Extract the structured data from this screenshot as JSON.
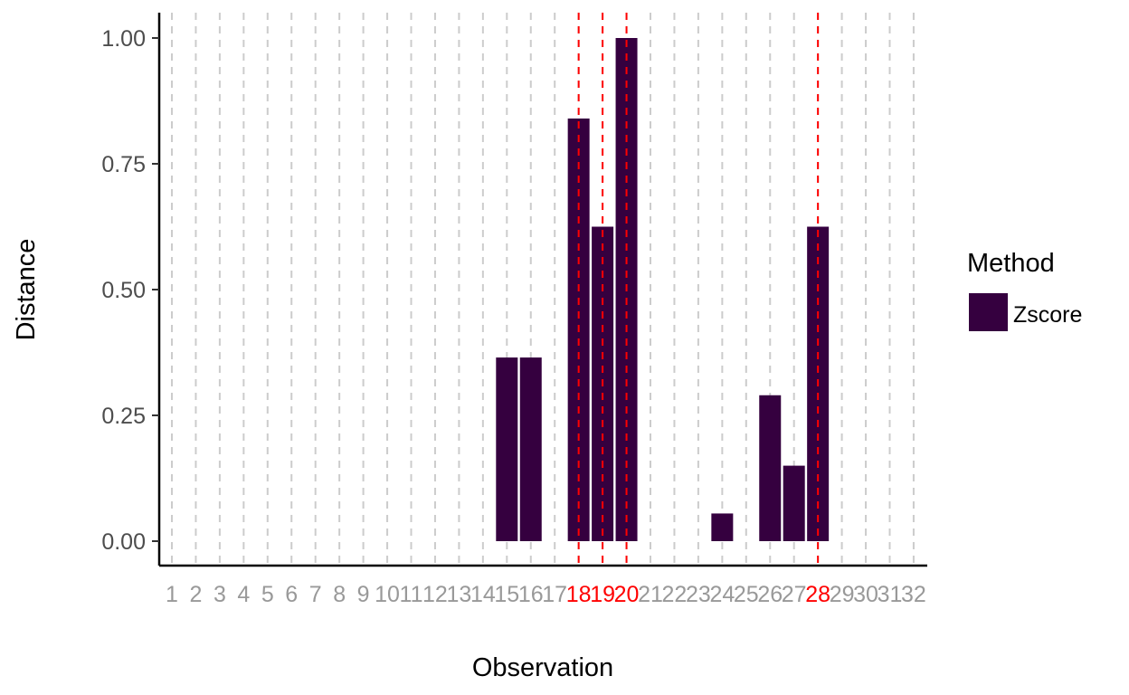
{
  "chart_data": {
    "type": "bar",
    "x": [
      "1",
      "2",
      "3",
      "4",
      "5",
      "6",
      "7",
      "8",
      "9",
      "10",
      "11",
      "12",
      "13",
      "14",
      "15",
      "16",
      "17",
      "18",
      "19",
      "20",
      "21",
      "22",
      "23",
      "24",
      "25",
      "26",
      "27",
      "28",
      "29",
      "30",
      "31",
      "32"
    ],
    "series": [
      {
        "name": "Zscore",
        "color": "#35003F",
        "values": [
          0,
          0,
          0,
          0,
          0,
          0,
          0,
          0,
          0,
          0,
          0,
          0,
          0,
          0,
          0.365,
          0.365,
          0,
          0.84,
          0.625,
          1.0,
          0,
          0,
          0,
          0.055,
          0,
          0.29,
          0.15,
          0.625,
          0,
          0,
          0,
          0
        ]
      }
    ],
    "highlighted": [
      "18",
      "19",
      "20",
      "28"
    ],
    "highlight_color": "#FF0000",
    "tick_color": "#999999",
    "grid_color": "#CCCCCC",
    "xlabel": "Observation",
    "ylabel": "Distance",
    "ylim": [
      0,
      1.0
    ],
    "yticks": [
      0,
      0.25,
      0.5,
      0.75,
      1.0
    ],
    "ytick_labels": [
      "0.00",
      "0.25",
      "0.50",
      "0.75",
      "1.00"
    ],
    "grid": true,
    "legend": {
      "title": "Method",
      "position": "right"
    }
  }
}
